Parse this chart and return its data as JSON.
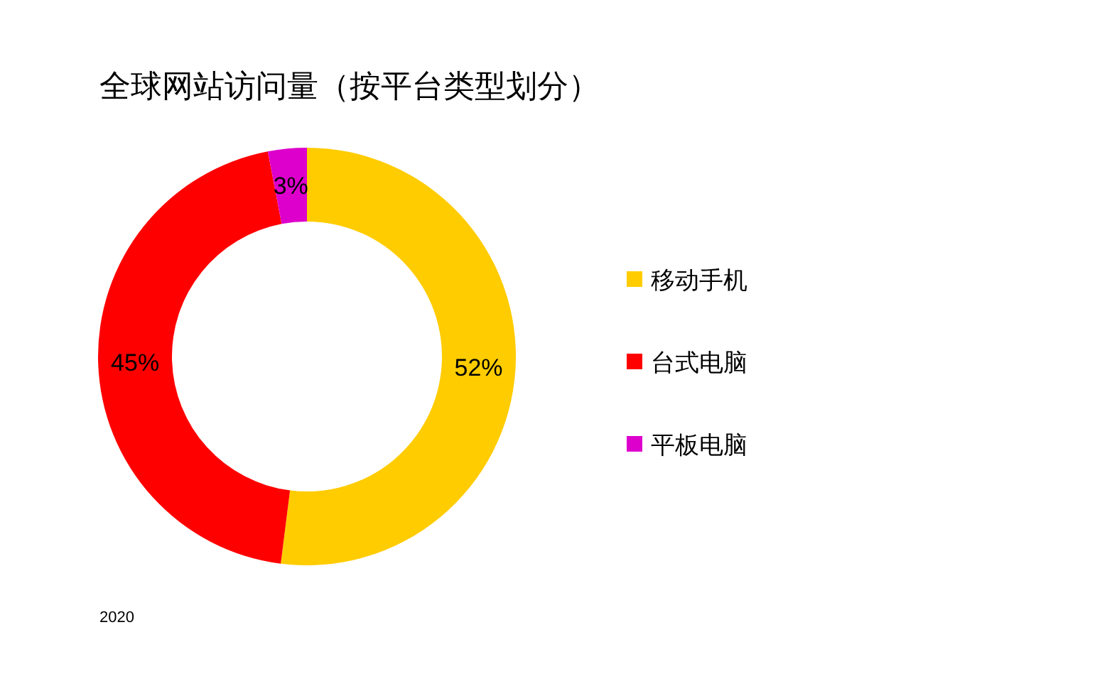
{
  "chart_data": {
    "type": "donut",
    "title": "全球网站访问量（按平台类型划分）",
    "categories": [
      "移动手机",
      "台式电脑",
      "平板电脑"
    ],
    "values": [
      52,
      45,
      3
    ],
    "colors": [
      "#ffcc00",
      "#ff0000",
      "#dd00cc"
    ],
    "value_labels": [
      "52%",
      "45%",
      "3%"
    ],
    "legend": "right",
    "annotations": [
      "2020"
    ]
  }
}
